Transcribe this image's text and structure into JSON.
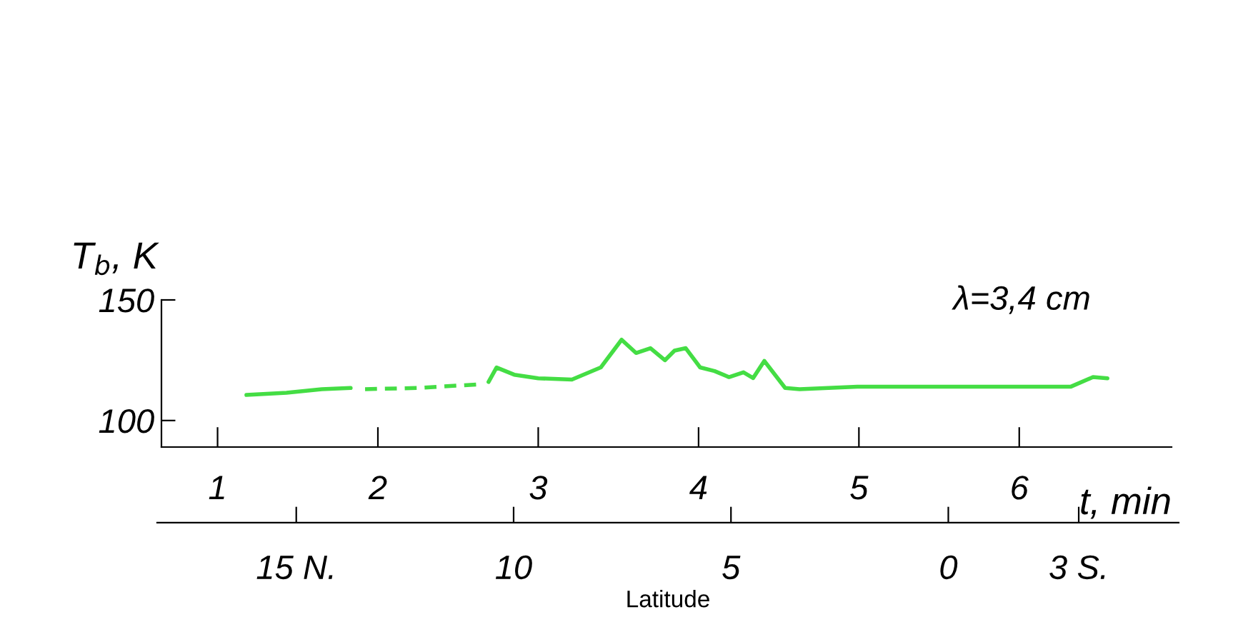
{
  "chart_data": {
    "type": "line",
    "ylabel": "T$_{b}$, K",
    "xlabel": "t, min",
    "x2label": "Latitude",
    "annotations": [
      "λ=3,4 cm"
    ],
    "xlim": [
      0.65,
      6.95
    ],
    "xticks": [
      1,
      2,
      3,
      4,
      5,
      6
    ],
    "x2lim": [
      18.2,
      -5.3
    ],
    "x2ticks": [
      {
        "value": 15,
        "label": "15 N."
      },
      10,
      5,
      0,
      {
        "value": -3,
        "label": "3 S."
      }
    ],
    "ylim": [
      89,
      150
    ],
    "yticks": [
      100,
      150
    ],
    "grid": false,
    "marker": "none",
    "series": [
      {
        "color": "#44dd44",
        "line_style": "solid",
        "x": [
          1.18,
          1.43,
          1.65,
          1.83
        ],
        "values": [
          110.6,
          111.5,
          113,
          113.5
        ]
      },
      {
        "color": "#44dd44",
        "line_style": "dashed",
        "x": [
          1.92,
          2.25,
          2.63
        ],
        "values": [
          113,
          113.5,
          115
        ]
      },
      {
        "color": "#44dd44",
        "line_style": "solid",
        "x": [
          2.69,
          2.74,
          2.85,
          3.0,
          3.21,
          3.39,
          3.52,
          3.61,
          3.7,
          3.79,
          3.85,
          3.92,
          4.01,
          4.1,
          4.19,
          4.28,
          4.34,
          4.41,
          4.54,
          4.63,
          4.99,
          5.43,
          5.88,
          6.32,
          6.46,
          6.55
        ],
        "values": [
          116,
          122,
          119,
          117.5,
          117,
          122,
          133.5,
          128,
          130,
          125,
          129,
          130,
          122,
          120.5,
          118,
          120,
          117.6,
          124.7,
          113.5,
          113,
          114,
          114,
          114,
          114,
          118,
          117.5
        ]
      }
    ]
  }
}
